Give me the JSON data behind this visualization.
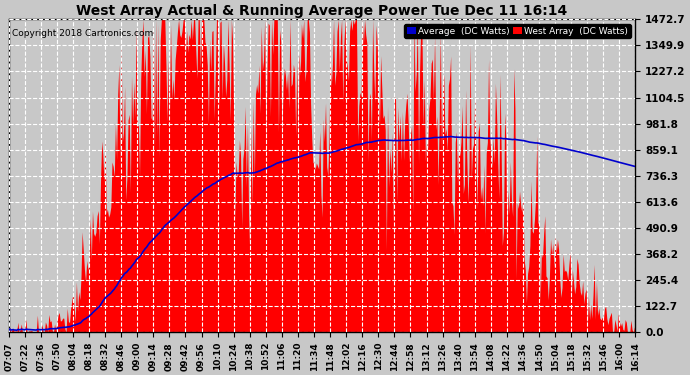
{
  "title": "West Array Actual & Running Average Power Tue Dec 11 16:14",
  "copyright": "Copyright 2018 Cartronics.com",
  "legend_avg": "Average  (DC Watts)",
  "legend_west": "West Array  (DC Watts)",
  "ylabel_values": [
    0.0,
    122.7,
    245.4,
    368.2,
    490.9,
    613.6,
    736.3,
    859.1,
    981.8,
    1104.5,
    1227.2,
    1349.9,
    1472.7
  ],
  "ymax": 1472.7,
  "ymin": 0.0,
  "background_color": "#c8c8c8",
  "plot_bg_color": "#c8c8c8",
  "bar_color": "#ff0000",
  "avg_line_color": "#0000cd",
  "title_color": "#000000",
  "grid_color": "#ffffff",
  "x_tick_labels": [
    "07:07",
    "07:22",
    "07:36",
    "07:50",
    "08:04",
    "08:18",
    "08:32",
    "08:46",
    "09:00",
    "09:14",
    "09:28",
    "09:42",
    "09:56",
    "10:10",
    "10:24",
    "10:38",
    "10:52",
    "11:06",
    "11:20",
    "11:34",
    "11:48",
    "12:02",
    "12:16",
    "12:30",
    "12:44",
    "12:58",
    "13:12",
    "13:26",
    "13:40",
    "13:54",
    "14:08",
    "14:22",
    "14:36",
    "14:50",
    "15:04",
    "15:18",
    "15:32",
    "15:46",
    "16:00",
    "16:14"
  ],
  "figsize": [
    6.9,
    3.75
  ],
  "dpi": 100
}
